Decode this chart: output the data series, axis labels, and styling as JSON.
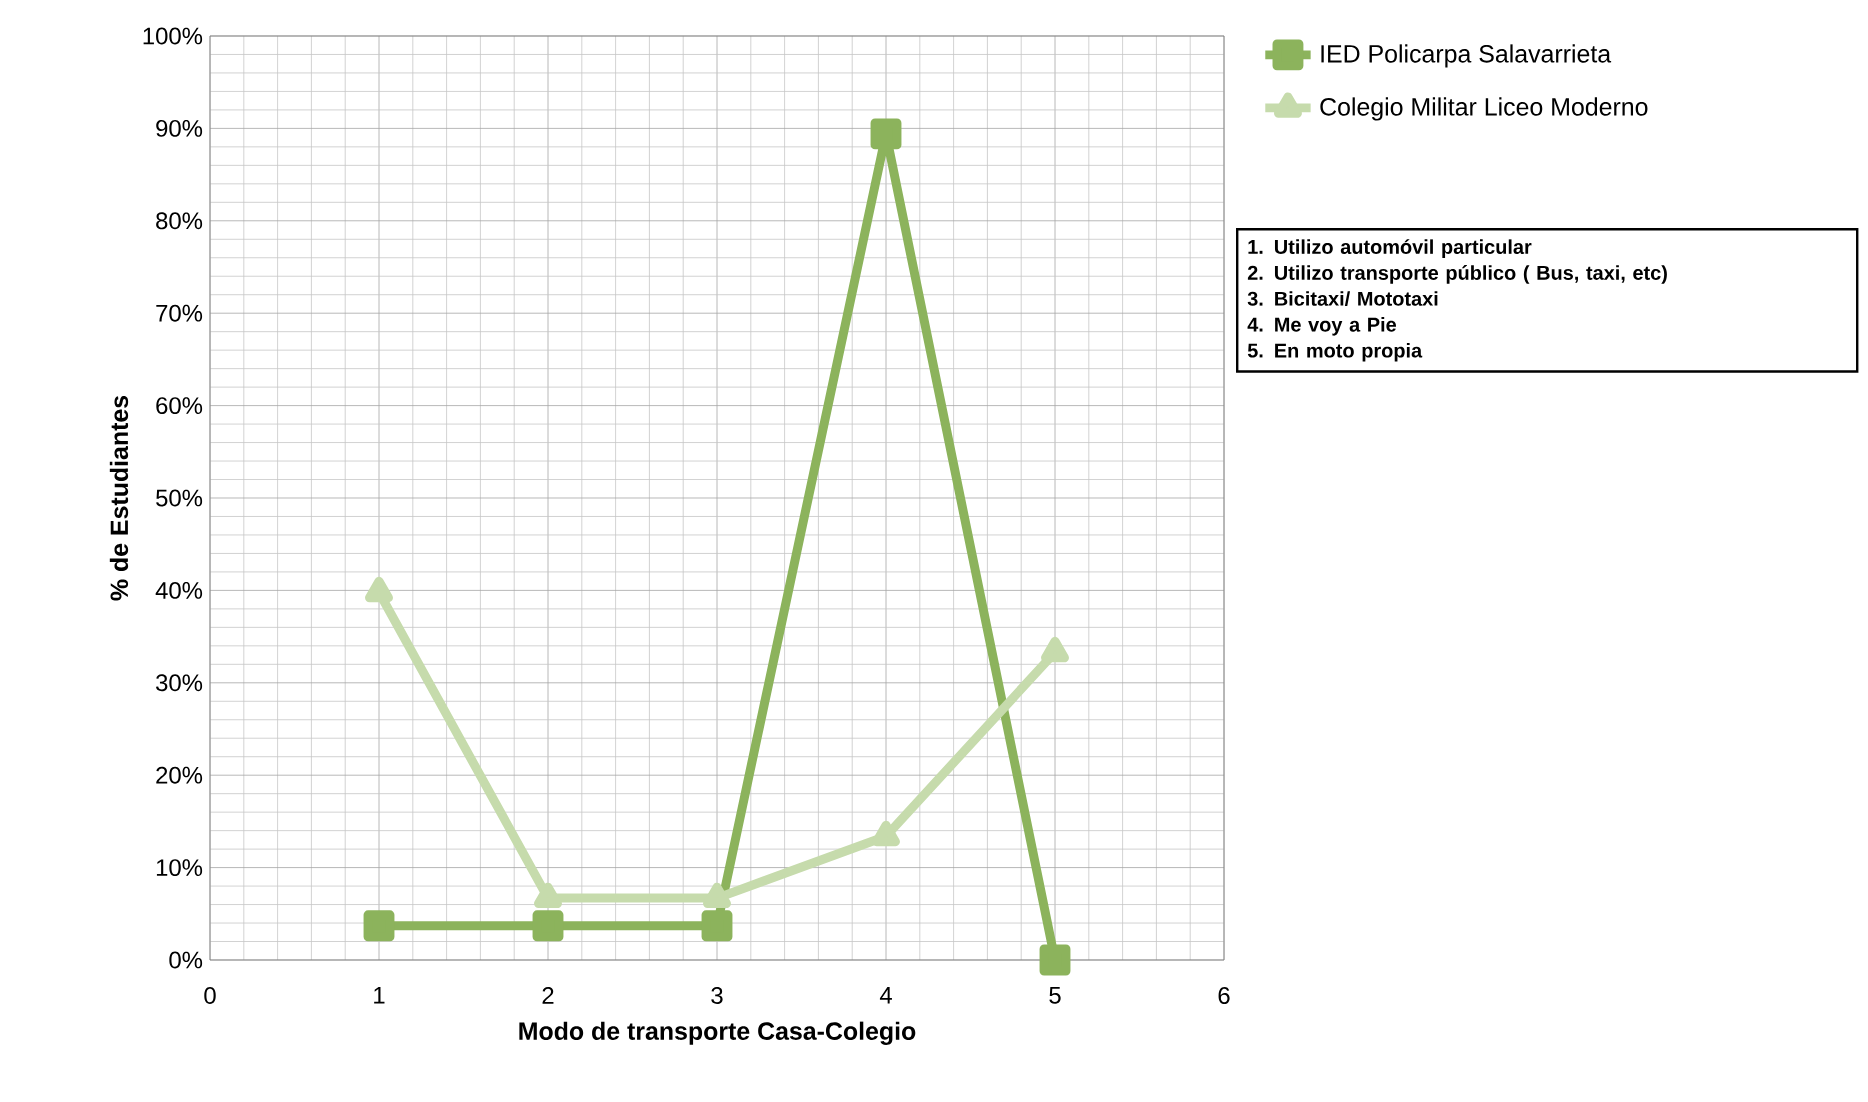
{
  "chart_data": {
    "type": "line",
    "xlabel": "Modo de transporte Casa-Colegio",
    "ylabel": "% de Estudiantes",
    "x": [
      1,
      2,
      3,
      4,
      5
    ],
    "series": [
      {
        "name": "IED Policarpa Salavarrieta",
        "color": "#8cb35c",
        "marker": "square",
        "values": [
          3.7,
          3.7,
          3.7,
          89.4,
          0
        ]
      },
      {
        "name": "Colegio Militar Liceo Moderno",
        "color": "#c6dbac",
        "marker": "triangle",
        "values": [
          39.8,
          6.7,
          6.7,
          13.4,
          33.3
        ]
      }
    ],
    "xlim": [
      0,
      6
    ],
    "xticks": [
      0,
      1,
      2,
      3,
      4,
      5,
      6
    ],
    "ylim": [
      0,
      100
    ],
    "yticks": [
      {
        "value": 0,
        "label": "0%"
      },
      {
        "value": 10,
        "label": "10%"
      },
      {
        "value": 20,
        "label": "20%"
      },
      {
        "value": 30,
        "label": "30%"
      },
      {
        "value": 40,
        "label": "40%"
      },
      {
        "value": 50,
        "label": "50%"
      },
      {
        "value": 60,
        "label": "60%"
      },
      {
        "value": 70,
        "label": "70%"
      },
      {
        "value": 80,
        "label": "80%"
      },
      {
        "value": 90,
        "label": "90%"
      },
      {
        "value": 100,
        "label": "100%"
      }
    ],
    "grid": true,
    "legend": "right",
    "annotations": [
      "1. Utilizo automóvil particular",
      "2. Utilizo transporte público ( Bus, taxi, etc)",
      "3. Bicitaxi/ Mototaxi",
      "4. Me voy a Pie",
      "5. En moto propia"
    ]
  }
}
